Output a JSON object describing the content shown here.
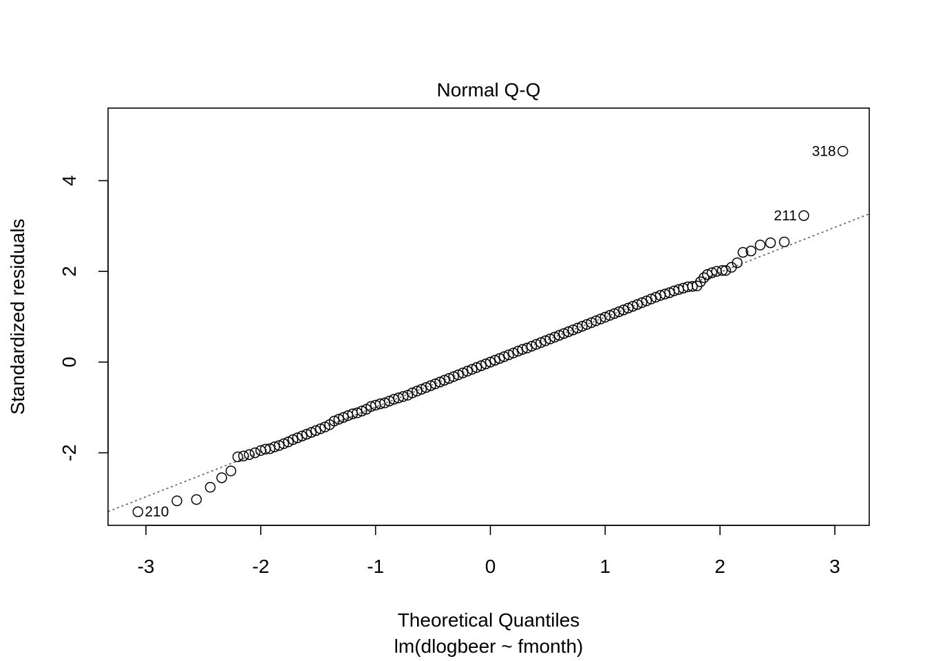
{
  "chart_data": {
    "type": "scatter",
    "title": "Normal Q-Q",
    "xlabel": "Theoretical Quantiles",
    "xlabel_sub": "lm(dlogbeer ~ fmonth)",
    "ylabel": "Standardized residuals",
    "xlim": [
      -3.33,
      3.3
    ],
    "ylim": [
      -3.6,
      5.6
    ],
    "x_ticks": [
      -3,
      -2,
      -1,
      0,
      1,
      2,
      3
    ],
    "x_tick_labels": [
      "-3",
      "-2",
      "-1",
      "0",
      "1",
      "2",
      "3"
    ],
    "y_ticks": [
      -2,
      0,
      2,
      4
    ],
    "y_tick_labels": [
      "-2",
      "0",
      "2",
      "4"
    ],
    "grid": false,
    "legend": "none",
    "reference_line": {
      "slope": 0.99,
      "intercept": 0.0,
      "style": "dotted",
      "color": "#6b6b6b"
    },
    "marker": "open-circle",
    "labeled_points": [
      {
        "label": "318",
        "x": 3.07,
        "y": 4.65,
        "side": "left"
      },
      {
        "label": "211",
        "x": 2.73,
        "y": 3.23,
        "side": "left"
      },
      {
        "label": "210",
        "x": -3.07,
        "y": -3.3,
        "side": "right"
      }
    ],
    "points": [
      [
        -3.07,
        -3.3
      ],
      [
        -2.73,
        -3.06
      ],
      [
        -2.56,
        -3.03
      ],
      [
        -2.44,
        -2.76
      ],
      [
        -2.34,
        -2.55
      ],
      [
        -2.26,
        -2.4
      ],
      [
        -2.2,
        -2.09
      ],
      [
        -2.15,
        -2.07
      ],
      [
        -2.1,
        -2.04
      ],
      [
        -2.05,
        -2.0
      ],
      [
        -2.0,
        -1.95
      ],
      [
        -1.96,
        -1.92
      ],
      [
        -1.92,
        -1.91
      ],
      [
        -1.88,
        -1.87
      ],
      [
        -1.84,
        -1.84
      ],
      [
        -1.8,
        -1.8
      ],
      [
        -1.76,
        -1.76
      ],
      [
        -1.72,
        -1.71
      ],
      [
        -1.68,
        -1.67
      ],
      [
        -1.64,
        -1.63
      ],
      [
        -1.6,
        -1.59
      ],
      [
        -1.56,
        -1.55
      ],
      [
        -1.52,
        -1.51
      ],
      [
        -1.48,
        -1.47
      ],
      [
        -1.44,
        -1.43
      ],
      [
        -1.4,
        -1.38
      ],
      [
        -1.36,
        -1.3
      ],
      [
        -1.32,
        -1.26
      ],
      [
        -1.28,
        -1.22
      ],
      [
        -1.24,
        -1.18
      ],
      [
        -1.2,
        -1.14
      ],
      [
        -1.16,
        -1.12
      ],
      [
        -1.12,
        -1.08
      ],
      [
        -1.08,
        -1.04
      ],
      [
        -1.04,
        -0.98
      ],
      [
        -1.0,
        -0.95
      ],
      [
        -0.96,
        -0.92
      ],
      [
        -0.92,
        -0.9
      ],
      [
        -0.88,
        -0.86
      ],
      [
        -0.84,
        -0.82
      ],
      [
        -0.8,
        -0.79
      ],
      [
        -0.76,
        -0.76
      ],
      [
        -0.72,
        -0.73
      ],
      [
        -0.68,
        -0.68
      ],
      [
        -0.64,
        -0.64
      ],
      [
        -0.6,
        -0.6
      ],
      [
        -0.56,
        -0.56
      ],
      [
        -0.52,
        -0.52
      ],
      [
        -0.48,
        -0.48
      ],
      [
        -0.44,
        -0.44
      ],
      [
        -0.4,
        -0.4
      ],
      [
        -0.36,
        -0.36
      ],
      [
        -0.32,
        -0.32
      ],
      [
        -0.28,
        -0.28
      ],
      [
        -0.24,
        -0.24
      ],
      [
        -0.2,
        -0.2
      ],
      [
        -0.16,
        -0.16
      ],
      [
        -0.12,
        -0.12
      ],
      [
        -0.08,
        -0.08
      ],
      [
        -0.04,
        -0.04
      ],
      [
        0.0,
        0.0
      ],
      [
        0.04,
        0.04
      ],
      [
        0.08,
        0.08
      ],
      [
        0.12,
        0.12
      ],
      [
        0.16,
        0.16
      ],
      [
        0.2,
        0.2
      ],
      [
        0.24,
        0.24
      ],
      [
        0.28,
        0.28
      ],
      [
        0.32,
        0.31
      ],
      [
        0.36,
        0.35
      ],
      [
        0.4,
        0.39
      ],
      [
        0.44,
        0.43
      ],
      [
        0.48,
        0.47
      ],
      [
        0.52,
        0.51
      ],
      [
        0.56,
        0.55
      ],
      [
        0.6,
        0.59
      ],
      [
        0.64,
        0.63
      ],
      [
        0.68,
        0.67
      ],
      [
        0.72,
        0.71
      ],
      [
        0.76,
        0.75
      ],
      [
        0.8,
        0.79
      ],
      [
        0.84,
        0.83
      ],
      [
        0.88,
        0.87
      ],
      [
        0.92,
        0.91
      ],
      [
        0.96,
        0.95
      ],
      [
        1.0,
        0.99
      ],
      [
        1.04,
        1.03
      ],
      [
        1.08,
        1.07
      ],
      [
        1.12,
        1.11
      ],
      [
        1.16,
        1.15
      ],
      [
        1.2,
        1.19
      ],
      [
        1.24,
        1.23
      ],
      [
        1.28,
        1.27
      ],
      [
        1.32,
        1.31
      ],
      [
        1.36,
        1.35
      ],
      [
        1.4,
        1.39
      ],
      [
        1.44,
        1.43
      ],
      [
        1.48,
        1.47
      ],
      [
        1.52,
        1.5
      ],
      [
        1.56,
        1.53
      ],
      [
        1.6,
        1.57
      ],
      [
        1.64,
        1.6
      ],
      [
        1.68,
        1.63
      ],
      [
        1.72,
        1.66
      ],
      [
        1.76,
        1.67
      ],
      [
        1.8,
        1.68
      ],
      [
        1.83,
        1.77
      ],
      [
        1.86,
        1.86
      ],
      [
        1.89,
        1.93
      ],
      [
        1.93,
        1.97
      ],
      [
        1.97,
        2.0
      ],
      [
        2.02,
        2.02
      ],
      [
        2.05,
        2.02
      ],
      [
        2.1,
        2.09
      ],
      [
        2.15,
        2.19
      ],
      [
        2.2,
        2.42
      ],
      [
        2.27,
        2.45
      ],
      [
        2.35,
        2.58
      ],
      [
        2.44,
        2.63
      ],
      [
        2.56,
        2.65
      ],
      [
        2.73,
        3.23
      ],
      [
        3.07,
        4.65
      ]
    ]
  }
}
